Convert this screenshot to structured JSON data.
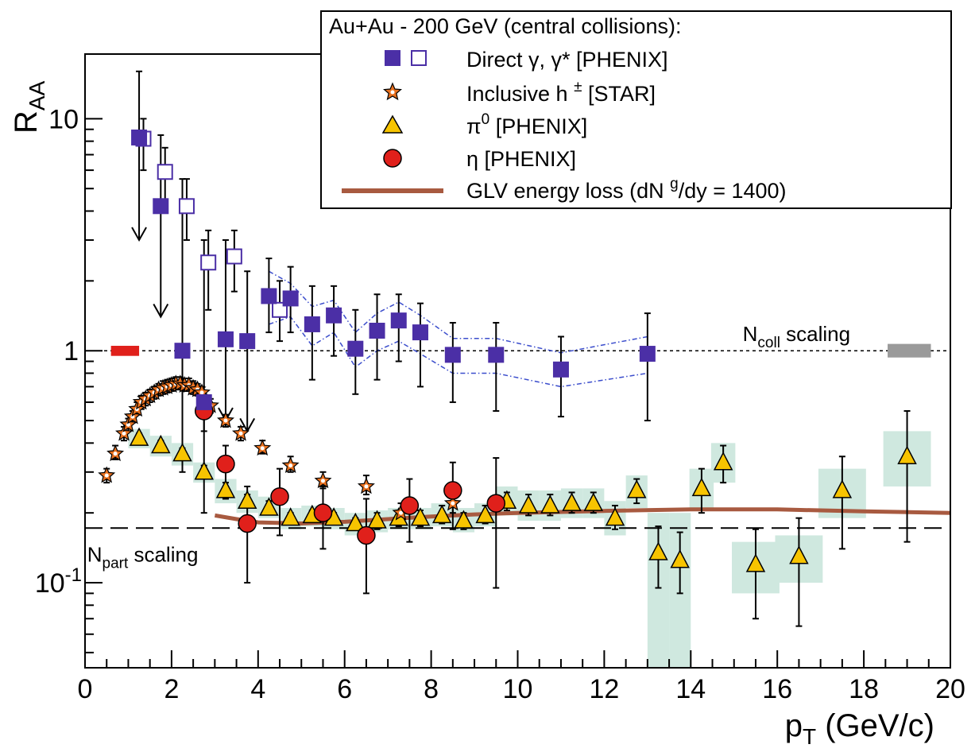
{
  "chart_data": {
    "type": "scatter",
    "title": "",
    "x_axis": {
      "label_main": "p",
      "label_sub": "T",
      "label_units": " (GeV/c)",
      "range": [
        0,
        20
      ],
      "scale": "linear",
      "tick_labels": [
        "0",
        "2",
        "4",
        "6",
        "8",
        "10",
        "12",
        "14",
        "16",
        "18",
        "20"
      ]
    },
    "y_axis": {
      "label_main": "R",
      "label_sub": "AA",
      "range": [
        0.043,
        19
      ],
      "scale": "log",
      "tick_10": "10",
      "tick_1": "1",
      "tick_01_base": "10",
      "tick_01_exp": "-1"
    },
    "grid": false,
    "legend": {
      "placement": "top-right",
      "header": "Au+Au - 200 GeV (central collisions):",
      "entries": {
        "direct_pre": "Direct  ",
        "direct_main": "γ, γ* [PHENIX]",
        "hadron_main": "Inclusive h ",
        "hadron_sup": "±",
        "hadron_post": " [STAR]",
        "pi0_main": "π",
        "pi0_sup": "0",
        "pi0_post": " [PHENIX]",
        "eta": "η [PHENIX]",
        "glv_pre": "GLV energy loss (dN ",
        "glv_sup": "g",
        "glv_post": "/dy = 1400)"
      }
    },
    "annotations": {
      "ncoll_main": "N",
      "ncoll_sub": "coll",
      "ncoll_post": " scaling",
      "npart_main": "N",
      "npart_sub": "part",
      "npart_post": " scaling"
    },
    "reference_lines": {
      "ncoll_level": 1.0,
      "npart_level": 0.172
    },
    "colors": {
      "direct": "#4b2fa6",
      "direct_band": "#3b4dcc",
      "hadron_fill": "#e8701e",
      "pi0": "#f7c400",
      "eta": "#e0201b",
      "glv": "#a85a40",
      "syst_band": "#cfe8df",
      "ncoll_box_left": "#e0201b",
      "ncoll_box_right": "#9a9a9a"
    },
    "series": [
      {
        "id": "direct_filled",
        "points": [
          {
            "x": 1.25,
            "y": 8.3,
            "lo": 3.0,
            "hi": 16.0,
            "arrow": true
          },
          {
            "x": 1.75,
            "y": 4.2,
            "lo": 1.4,
            "hi": 8.5,
            "arrow": true
          },
          {
            "x": 2.25,
            "y": 1.0,
            "lo": 0.3,
            "hi": 5.5
          },
          {
            "x": 2.75,
            "y": 0.6,
            "lo": 0.2,
            "hi": 3.0
          },
          {
            "x": 3.25,
            "y": 1.12,
            "lo": 0.5,
            "hi": 3.0,
            "arrow": true
          },
          {
            "x": 3.75,
            "y": 1.1,
            "lo": 0.45,
            "hi": 2.2,
            "arrow": true
          },
          {
            "x": 4.25,
            "y": 1.72,
            "lo": 1.2,
            "hi": 2.5
          },
          {
            "x": 4.75,
            "y": 1.68,
            "lo": 1.2,
            "hi": 2.3
          },
          {
            "x": 5.25,
            "y": 1.3,
            "lo": 0.75,
            "hi": 1.9
          },
          {
            "x": 5.75,
            "y": 1.42,
            "lo": 0.95,
            "hi": 1.9
          },
          {
            "x": 6.25,
            "y": 1.02,
            "lo": 0.65,
            "hi": 1.5
          },
          {
            "x": 6.75,
            "y": 1.22,
            "lo": 0.75,
            "hi": 1.75
          },
          {
            "x": 7.25,
            "y": 1.35,
            "lo": 0.9,
            "hi": 1.75
          },
          {
            "x": 7.75,
            "y": 1.2,
            "lo": 0.7,
            "hi": 1.6
          },
          {
            "x": 8.5,
            "y": 0.96,
            "lo": 0.6,
            "hi": 1.32
          },
          {
            "x": 9.5,
            "y": 0.96,
            "lo": 0.55,
            "hi": 1.32
          },
          {
            "x": 11.0,
            "y": 0.83,
            "lo": 0.52,
            "hi": 1.15
          },
          {
            "x": 13.0,
            "y": 0.97,
            "lo": 0.5,
            "hi": 1.45
          }
        ]
      },
      {
        "id": "direct_open",
        "points": [
          {
            "x": 1.35,
            "y": 8.2,
            "lo": 6.0,
            "hi": 10.0
          },
          {
            "x": 1.85,
            "y": 5.9,
            "lo": 4.2,
            "hi": 7.5
          },
          {
            "x": 2.35,
            "y": 4.2,
            "lo": 3.0,
            "hi": 5.5
          },
          {
            "x": 2.85,
            "y": 2.4,
            "lo": 1.5,
            "hi": 3.3
          },
          {
            "x": 3.45,
            "y": 2.55,
            "lo": 1.8,
            "hi": 3.3
          },
          {
            "x": 4.5,
            "y": 1.5,
            "lo": 1.1,
            "hi": 2.0
          }
        ]
      },
      {
        "id": "direct_band_upper",
        "points": [
          {
            "x": 4.25,
            "y": 2.2
          },
          {
            "x": 4.75,
            "y": 1.95
          },
          {
            "x": 5.25,
            "y": 1.55
          },
          {
            "x": 5.75,
            "y": 1.65
          },
          {
            "x": 6.25,
            "y": 1.2
          },
          {
            "x": 6.75,
            "y": 1.45
          },
          {
            "x": 7.25,
            "y": 1.62
          },
          {
            "x": 7.75,
            "y": 1.42
          },
          {
            "x": 8.5,
            "y": 1.13
          },
          {
            "x": 9.5,
            "y": 1.13
          },
          {
            "x": 11.0,
            "y": 0.98
          },
          {
            "x": 13.0,
            "y": 1.15
          }
        ]
      },
      {
        "id": "direct_band_lower",
        "points": [
          {
            "x": 4.25,
            "y": 1.3
          },
          {
            "x": 4.75,
            "y": 1.4
          },
          {
            "x": 5.25,
            "y": 1.05
          },
          {
            "x": 5.75,
            "y": 1.2
          },
          {
            "x": 6.25,
            "y": 0.85
          },
          {
            "x": 6.75,
            "y": 1.0
          },
          {
            "x": 7.25,
            "y": 1.1
          },
          {
            "x": 7.75,
            "y": 0.97
          },
          {
            "x": 8.5,
            "y": 0.8
          },
          {
            "x": 9.5,
            "y": 0.8
          },
          {
            "x": 11.0,
            "y": 0.7
          },
          {
            "x": 13.0,
            "y": 0.8
          }
        ]
      },
      {
        "id": "hadron",
        "points": [
          {
            "x": 0.5,
            "y": 0.29,
            "lo": 0.27,
            "hi": 0.31
          },
          {
            "x": 0.7,
            "y": 0.36,
            "lo": 0.34,
            "hi": 0.39
          },
          {
            "x": 0.9,
            "y": 0.44,
            "lo": 0.41,
            "hi": 0.47
          },
          {
            "x": 1.0,
            "y": 0.48,
            "lo": 0.45,
            "hi": 0.51
          },
          {
            "x": 1.1,
            "y": 0.52,
            "lo": 0.49,
            "hi": 0.55
          },
          {
            "x": 1.2,
            "y": 0.56,
            "lo": 0.53,
            "hi": 0.6
          },
          {
            "x": 1.3,
            "y": 0.6,
            "lo": 0.56,
            "hi": 0.64
          },
          {
            "x": 1.4,
            "y": 0.62,
            "lo": 0.58,
            "hi": 0.66
          },
          {
            "x": 1.5,
            "y": 0.64,
            "lo": 0.6,
            "hi": 0.68
          },
          {
            "x": 1.6,
            "y": 0.66,
            "lo": 0.62,
            "hi": 0.7
          },
          {
            "x": 1.7,
            "y": 0.68,
            "lo": 0.64,
            "hi": 0.72
          },
          {
            "x": 1.8,
            "y": 0.69,
            "lo": 0.65,
            "hi": 0.74
          },
          {
            "x": 1.9,
            "y": 0.7,
            "lo": 0.66,
            "hi": 0.75
          },
          {
            "x": 2.0,
            "y": 0.71,
            "lo": 0.67,
            "hi": 0.76
          },
          {
            "x": 2.1,
            "y": 0.72,
            "lo": 0.68,
            "hi": 0.77
          },
          {
            "x": 2.2,
            "y": 0.72,
            "lo": 0.68,
            "hi": 0.77
          },
          {
            "x": 2.3,
            "y": 0.71,
            "lo": 0.67,
            "hi": 0.76
          },
          {
            "x": 2.4,
            "y": 0.71,
            "lo": 0.67,
            "hi": 0.76
          },
          {
            "x": 2.5,
            "y": 0.69,
            "lo": 0.65,
            "hi": 0.74
          },
          {
            "x": 2.6,
            "y": 0.68,
            "lo": 0.64,
            "hi": 0.72
          },
          {
            "x": 2.7,
            "y": 0.66,
            "lo": 0.62,
            "hi": 0.7
          },
          {
            "x": 2.9,
            "y": 0.58,
            "lo": 0.54,
            "hi": 0.62
          },
          {
            "x": 3.25,
            "y": 0.5,
            "lo": 0.47,
            "hi": 0.53
          },
          {
            "x": 3.6,
            "y": 0.44,
            "lo": 0.41,
            "hi": 0.47
          },
          {
            "x": 4.1,
            "y": 0.38,
            "lo": 0.36,
            "hi": 0.41
          },
          {
            "x": 4.75,
            "y": 0.32,
            "lo": 0.3,
            "hi": 0.35
          },
          {
            "x": 5.5,
            "y": 0.275,
            "lo": 0.255,
            "hi": 0.3
          },
          {
            "x": 6.5,
            "y": 0.26,
            "lo": 0.24,
            "hi": 0.29
          },
          {
            "x": 7.3,
            "y": 0.2,
            "lo": 0.18,
            "hi": 0.22
          },
          {
            "x": 8.5,
            "y": 0.22,
            "lo": 0.2,
            "hi": 0.25
          }
        ]
      },
      {
        "id": "pi0",
        "points": [
          {
            "x": 1.25,
            "y": 0.42,
            "lo": 0.4,
            "hi": 0.44,
            "s_lo": 0.38,
            "s_hi": 0.46
          },
          {
            "x": 1.75,
            "y": 0.39,
            "lo": 0.37,
            "hi": 0.41,
            "s_lo": 0.35,
            "s_hi": 0.43
          },
          {
            "x": 2.25,
            "y": 0.36,
            "lo": 0.34,
            "hi": 0.38,
            "s_lo": 0.32,
            "s_hi": 0.4
          },
          {
            "x": 2.75,
            "y": 0.3,
            "lo": 0.28,
            "hi": 0.32,
            "s_lo": 0.27,
            "s_hi": 0.33
          },
          {
            "x": 3.25,
            "y": 0.25,
            "lo": 0.23,
            "hi": 0.27,
            "s_lo": 0.22,
            "s_hi": 0.28
          },
          {
            "x": 3.75,
            "y": 0.225,
            "lo": 0.21,
            "hi": 0.24,
            "s_lo": 0.2,
            "s_hi": 0.25
          },
          {
            "x": 4.25,
            "y": 0.21,
            "lo": 0.2,
            "hi": 0.225,
            "s_lo": 0.19,
            "s_hi": 0.235
          },
          {
            "x": 4.75,
            "y": 0.19,
            "lo": 0.18,
            "hi": 0.2,
            "s_lo": 0.17,
            "s_hi": 0.21
          },
          {
            "x": 5.25,
            "y": 0.195,
            "lo": 0.185,
            "hi": 0.205,
            "s_lo": 0.175,
            "s_hi": 0.215
          },
          {
            "x": 5.75,
            "y": 0.19,
            "lo": 0.18,
            "hi": 0.2,
            "s_lo": 0.17,
            "s_hi": 0.21
          },
          {
            "x": 6.25,
            "y": 0.18,
            "lo": 0.17,
            "hi": 0.19,
            "s_lo": 0.16,
            "s_hi": 0.2
          },
          {
            "x": 6.75,
            "y": 0.185,
            "lo": 0.17,
            "hi": 0.2,
            "s_lo": 0.165,
            "s_hi": 0.205
          },
          {
            "x": 7.25,
            "y": 0.19,
            "lo": 0.175,
            "hi": 0.205,
            "s_lo": 0.17,
            "s_hi": 0.21
          },
          {
            "x": 7.75,
            "y": 0.19,
            "lo": 0.175,
            "hi": 0.205,
            "s_lo": 0.17,
            "s_hi": 0.21
          },
          {
            "x": 8.25,
            "y": 0.195,
            "lo": 0.18,
            "hi": 0.215,
            "s_lo": 0.175,
            "s_hi": 0.22
          },
          {
            "x": 8.75,
            "y": 0.185,
            "lo": 0.17,
            "hi": 0.2,
            "s_lo": 0.165,
            "s_hi": 0.21
          },
          {
            "x": 9.25,
            "y": 0.195,
            "lo": 0.18,
            "hi": 0.215,
            "s_lo": 0.175,
            "s_hi": 0.22
          },
          {
            "x": 9.75,
            "y": 0.225,
            "lo": 0.205,
            "hi": 0.245,
            "s_lo": 0.195,
            "s_hi": 0.26
          },
          {
            "x": 10.25,
            "y": 0.215,
            "lo": 0.195,
            "hi": 0.24,
            "s_lo": 0.185,
            "s_hi": 0.25
          },
          {
            "x": 10.75,
            "y": 0.215,
            "lo": 0.195,
            "hi": 0.24,
            "s_lo": 0.185,
            "s_hi": 0.25
          },
          {
            "x": 11.25,
            "y": 0.22,
            "lo": 0.2,
            "hi": 0.245,
            "s_lo": 0.19,
            "s_hi": 0.255
          },
          {
            "x": 11.75,
            "y": 0.22,
            "lo": 0.2,
            "hi": 0.245,
            "s_lo": 0.19,
            "s_hi": 0.255
          },
          {
            "x": 12.25,
            "y": 0.19,
            "lo": 0.17,
            "hi": 0.215,
            "s_lo": 0.16,
            "s_hi": 0.225
          },
          {
            "x": 12.75,
            "y": 0.25,
            "lo": 0.22,
            "hi": 0.28,
            "s_lo": 0.21,
            "s_hi": 0.29
          },
          {
            "x": 13.25,
            "y": 0.135,
            "lo": 0.095,
            "hi": 0.175,
            "s_lo": 0.04,
            "s_hi": 0.2
          },
          {
            "x": 13.75,
            "y": 0.125,
            "lo": 0.09,
            "hi": 0.165,
            "s_lo": 0.04,
            "s_hi": 0.2
          },
          {
            "x": 14.25,
            "y": 0.255,
            "lo": 0.2,
            "hi": 0.31,
            "s_lo": 0.21,
            "s_hi": 0.31
          },
          {
            "x": 14.75,
            "y": 0.33,
            "lo": 0.27,
            "hi": 0.39,
            "s_lo": 0.27,
            "s_hi": 0.4
          },
          {
            "x": 15.5,
            "y": 0.12,
            "lo": 0.07,
            "hi": 0.17,
            "s_lo": 0.09,
            "s_hi": 0.15
          },
          {
            "x": 16.5,
            "y": 0.13,
            "lo": 0.065,
            "hi": 0.19,
            "s_lo": 0.1,
            "s_hi": 0.16
          },
          {
            "x": 17.5,
            "y": 0.25,
            "lo": 0.14,
            "hi": 0.35,
            "s_lo": 0.19,
            "s_hi": 0.31
          },
          {
            "x": 19.0,
            "y": 0.35,
            "lo": 0.15,
            "hi": 0.55,
            "s_lo": 0.26,
            "s_hi": 0.45
          }
        ]
      },
      {
        "id": "eta",
        "points": [
          {
            "x": 2.75,
            "y": 0.55,
            "lo": 0.45,
            "hi": 0.65
          },
          {
            "x": 3.25,
            "y": 0.325,
            "lo": 0.26,
            "hi": 0.39
          },
          {
            "x": 3.75,
            "y": 0.18,
            "lo": 0.1,
            "hi": 0.26
          },
          {
            "x": 4.5,
            "y": 0.235,
            "lo": 0.16,
            "hi": 0.31
          },
          {
            "x": 5.5,
            "y": 0.2,
            "lo": 0.14,
            "hi": 0.26
          },
          {
            "x": 6.5,
            "y": 0.16,
            "lo": 0.09,
            "hi": 0.23
          },
          {
            "x": 7.5,
            "y": 0.215,
            "lo": 0.15,
            "hi": 0.28
          },
          {
            "x": 8.5,
            "y": 0.25,
            "lo": 0.17,
            "hi": 0.33
          },
          {
            "x": 9.5,
            "y": 0.22,
            "lo": 0.095,
            "hi": 0.345
          }
        ]
      },
      {
        "id": "glv",
        "points": [
          {
            "x": 3.0,
            "y": 0.195
          },
          {
            "x": 3.5,
            "y": 0.188
          },
          {
            "x": 4.0,
            "y": 0.182
          },
          {
            "x": 5.0,
            "y": 0.18
          },
          {
            "x": 6.0,
            "y": 0.183
          },
          {
            "x": 7.0,
            "y": 0.188
          },
          {
            "x": 8.0,
            "y": 0.193
          },
          {
            "x": 9.0,
            "y": 0.197
          },
          {
            "x": 10.0,
            "y": 0.2
          },
          {
            "x": 12.0,
            "y": 0.204
          },
          {
            "x": 14.0,
            "y": 0.207
          },
          {
            "x": 16.0,
            "y": 0.207
          },
          {
            "x": 18.0,
            "y": 0.203
          },
          {
            "x": 20.0,
            "y": 0.2
          }
        ]
      }
    ]
  }
}
